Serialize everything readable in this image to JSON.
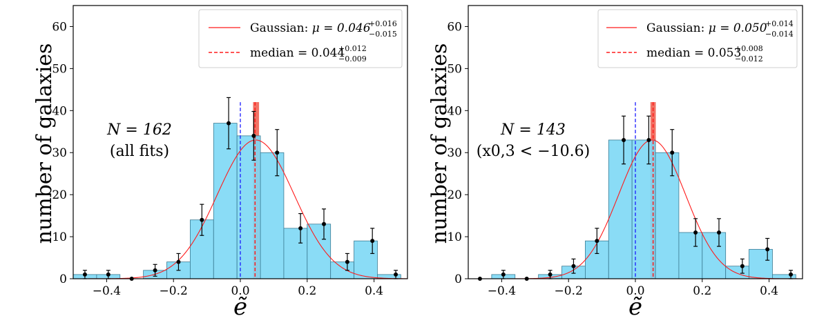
{
  "colors": {
    "bar_fill": "#7dd8f5",
    "bar_edge": "#3a7a92",
    "gaussian": "#ff1a1a",
    "median": "#ff1a1a",
    "median_band": "#ef5a4a",
    "zero_line": "#1a1aff",
    "points": "#000000"
  },
  "chart_data": [
    {
      "type": "bar",
      "xlabel": "ẽ",
      "ylabel": "number of galaxies",
      "xlim": [
        -0.5,
        0.5
      ],
      "ylim": [
        0,
        65
      ],
      "xticks": [
        -0.4,
        -0.2,
        0.0,
        0.2,
        0.4
      ],
      "xtick_labels": [
        "−0.4",
        "−0.2",
        "0.0",
        "0.2",
        "0.4"
      ],
      "yticks": [
        0,
        10,
        20,
        30,
        40,
        50,
        60
      ],
      "ytick_labels": [
        "0",
        "10",
        "20",
        "30",
        "40",
        "50",
        "60"
      ],
      "bin_width": 0.07,
      "bins": [
        {
          "x": -0.465,
          "count": 1,
          "err": 1.0
        },
        {
          "x": -0.395,
          "count": 1,
          "err": 1.0
        },
        {
          "x": -0.325,
          "count": 0,
          "err": 0
        },
        {
          "x": -0.255,
          "count": 2,
          "err": 1.4
        },
        {
          "x": -0.185,
          "count": 4,
          "err": 2.0
        },
        {
          "x": -0.115,
          "count": 14,
          "err": 3.7
        },
        {
          "x": -0.045,
          "count": 37,
          "err": 6.1
        },
        {
          "x": 0.025,
          "count": 34,
          "err": 5.8
        },
        {
          "x": 0.095,
          "count": 30,
          "err": 5.5
        },
        {
          "x": 0.165,
          "count": 12,
          "err": 3.5
        },
        {
          "x": 0.235,
          "count": 13,
          "err": 3.6
        },
        {
          "x": 0.305,
          "count": 4,
          "err": 2.0
        },
        {
          "x": 0.375,
          "count": 9,
          "err": 3.0
        },
        {
          "x": 0.445,
          "count": 1,
          "err": 1.0
        }
      ],
      "point_x": [
        -0.465,
        -0.395,
        -0.325,
        -0.255,
        -0.185,
        -0.115,
        -0.035,
        0.04,
        0.11,
        0.18,
        0.25,
        0.32,
        0.395,
        0.465
      ],
      "gaussian": {
        "mu": 0.046,
        "sigma": 0.115,
        "amplitude": 33
      },
      "median": 0.044,
      "median_band": [
        0.038,
        0.056
      ],
      "zero_line": 0.0,
      "legend": {
        "gaussian_label": "Gaussian: ",
        "gaussian_mu": "μ = 0.046",
        "gaussian_sup": "+0.016",
        "gaussian_sub": "−0.015",
        "median_label": "median = 0.044",
        "median_sup": "+0.012",
        "median_sub": "−0.009"
      },
      "annotation": {
        "line1": "N = 162",
        "line2": "(all fits)"
      }
    },
    {
      "type": "bar",
      "xlabel": "ẽ",
      "ylabel": "number of galaxies",
      "xlim": [
        -0.5,
        0.5
      ],
      "ylim": [
        0,
        65
      ],
      "xticks": [
        -0.4,
        -0.2,
        0.0,
        0.2,
        0.4
      ],
      "xtick_labels": [
        "−0.4",
        "−0.2",
        "0.0",
        "0.2",
        "0.4"
      ],
      "yticks": [
        0,
        10,
        20,
        30,
        40,
        50,
        60
      ],
      "ytick_labels": [
        "0",
        "10",
        "20",
        "30",
        "40",
        "50",
        "60"
      ],
      "bin_width": 0.07,
      "bins": [
        {
          "x": -0.465,
          "count": 0,
          "err": 0
        },
        {
          "x": -0.395,
          "count": 1,
          "err": 1.0
        },
        {
          "x": -0.325,
          "count": 0,
          "err": 0
        },
        {
          "x": -0.255,
          "count": 1,
          "err": 1.0
        },
        {
          "x": -0.185,
          "count": 3,
          "err": 1.7
        },
        {
          "x": -0.115,
          "count": 9,
          "err": 3.0
        },
        {
          "x": -0.045,
          "count": 33,
          "err": 5.7
        },
        {
          "x": 0.025,
          "count": 33,
          "err": 5.7
        },
        {
          "x": 0.095,
          "count": 30,
          "err": 5.5
        },
        {
          "x": 0.165,
          "count": 11,
          "err": 3.3
        },
        {
          "x": 0.235,
          "count": 11,
          "err": 3.3
        },
        {
          "x": 0.305,
          "count": 3,
          "err": 1.7
        },
        {
          "x": 0.375,
          "count": 7,
          "err": 2.6
        },
        {
          "x": 0.445,
          "count": 1,
          "err": 1.0
        }
      ],
      "point_x": [
        -0.465,
        -0.395,
        -0.325,
        -0.255,
        -0.185,
        -0.115,
        -0.035,
        0.04,
        0.11,
        0.18,
        0.25,
        0.32,
        0.395,
        0.465
      ],
      "gaussian": {
        "mu": 0.05,
        "sigma": 0.1,
        "amplitude": 33
      },
      "median": 0.053,
      "median_band": [
        0.045,
        0.061
      ],
      "zero_line": 0.0,
      "legend": {
        "gaussian_label": "Gaussian: ",
        "gaussian_mu": "μ = 0.050",
        "gaussian_sup": "+0.014",
        "gaussian_sub": "−0.014",
        "median_label": "median = 0.053",
        "median_sup": "+0.008",
        "median_sub": "−0.012"
      },
      "annotation": {
        "line1": "N = 143",
        "line2": "(x0,3 < −10.6)"
      }
    }
  ]
}
